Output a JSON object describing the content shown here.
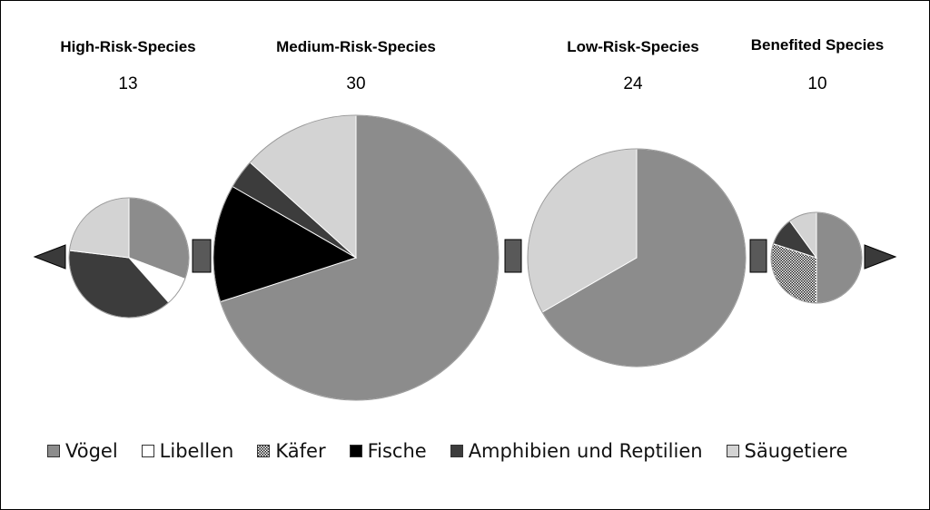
{
  "chart_data": {
    "type": "pie",
    "pies": [
      {
        "title": "High-Risk-Species",
        "count": "13",
        "slices": [
          {
            "category": "Vögel",
            "value": 4
          },
          {
            "category": "Libellen",
            "value": 1
          },
          {
            "category": "Amphibien und Reptilien",
            "value": 5
          },
          {
            "category": "Säugetiere",
            "value": 3
          }
        ]
      },
      {
        "title": "Medium-Risk-Species",
        "count": "30",
        "slices": [
          {
            "category": "Vögel",
            "value": 21
          },
          {
            "category": "Fische",
            "value": 4
          },
          {
            "category": "Amphibien und Reptilien",
            "value": 1
          },
          {
            "category": "Säugetiere",
            "value": 4
          }
        ]
      },
      {
        "title": "Low-Risk-Species",
        "count": "24",
        "slices": [
          {
            "category": "Vögel",
            "value": 16
          },
          {
            "category": "Säugetiere",
            "value": 8
          }
        ]
      },
      {
        "title": "Benefited Species",
        "count": "10",
        "slices": [
          {
            "category": "Vögel",
            "value": 5
          },
          {
            "category": "Käfer",
            "value": 3
          },
          {
            "category": "Amphibien und Reptilien",
            "value": 1
          },
          {
            "category": "Säugetiere",
            "value": 1
          }
        ]
      }
    ],
    "legend": [
      {
        "label": "Vögel",
        "color": "#8c8c8c",
        "pattern": "solid"
      },
      {
        "label": "Libellen",
        "color": "#ffffff",
        "pattern": "solid"
      },
      {
        "label": "Käfer",
        "color": "#444444",
        "pattern": "checker"
      },
      {
        "label": "Fische",
        "color": "#000000",
        "pattern": "solid"
      },
      {
        "label": "Amphibien und Reptilien",
        "color": "#3c3c3c",
        "pattern": "solid"
      },
      {
        "label": "Säugetiere",
        "color": "#d3d3d3",
        "pattern": "solid"
      }
    ],
    "legend_position": "bottom"
  }
}
